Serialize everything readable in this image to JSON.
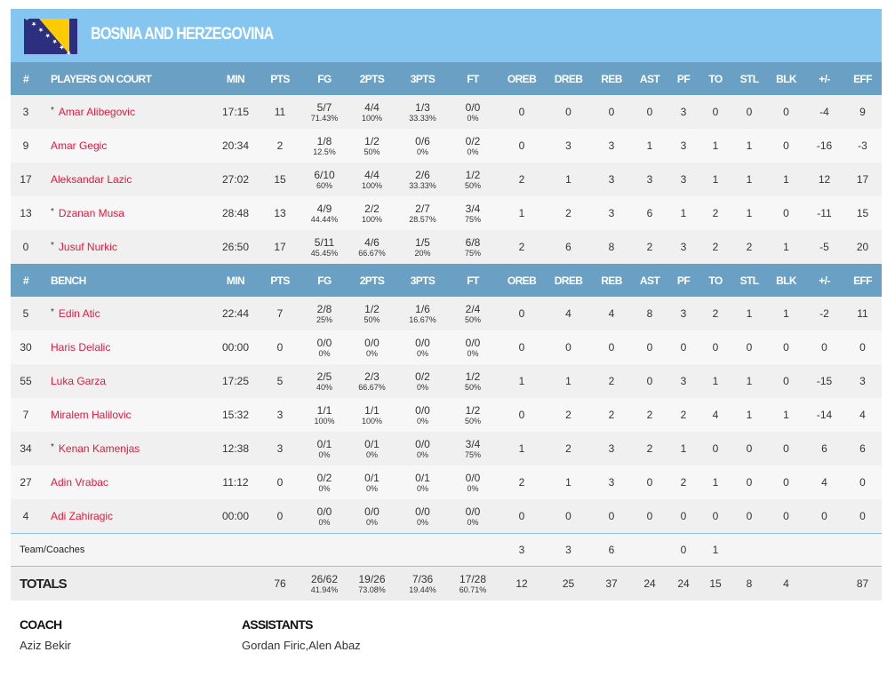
{
  "team": {
    "name": "BOSNIA AND HERZEGOVINA",
    "flag_colors": {
      "blue": "#2b2f7e",
      "yellow": "#fecb00"
    }
  },
  "columns": [
    "MIN",
    "PTS",
    "FG",
    "2PTS",
    "3PTS",
    "FT",
    "OREB",
    "DREB",
    "REB",
    "AST",
    "PF",
    "TO",
    "STL",
    "BLK",
    "+/-",
    "EFF"
  ],
  "hash_label": "#",
  "on_court_label": "PLAYERS ON COURT",
  "bench_label": "BENCH",
  "on_court": [
    {
      "no": "3",
      "starter": true,
      "name": "Amar Alibegovic",
      "min": "17:15",
      "pts": "11",
      "fg": [
        "5/7",
        "71.43%"
      ],
      "p2": [
        "4/4",
        "100%"
      ],
      "p3": [
        "1/3",
        "33.33%"
      ],
      "ft": [
        "0/0",
        "0%"
      ],
      "rest": [
        "0",
        "0",
        "0",
        "0",
        "3",
        "0",
        "0",
        "0",
        "-4",
        "9"
      ]
    },
    {
      "no": "9",
      "starter": false,
      "name": "Amar Gegic",
      "min": "20:34",
      "pts": "2",
      "fg": [
        "1/8",
        "12.5%"
      ],
      "p2": [
        "1/2",
        "50%"
      ],
      "p3": [
        "0/6",
        "0%"
      ],
      "ft": [
        "0/2",
        "0%"
      ],
      "rest": [
        "0",
        "3",
        "3",
        "1",
        "3",
        "1",
        "1",
        "0",
        "-16",
        "-3"
      ]
    },
    {
      "no": "17",
      "starter": false,
      "name": "Aleksandar Lazic",
      "min": "27:02",
      "pts": "15",
      "fg": [
        "6/10",
        "60%"
      ],
      "p2": [
        "4/4",
        "100%"
      ],
      "p3": [
        "2/6",
        "33.33%"
      ],
      "ft": [
        "1/2",
        "50%"
      ],
      "rest": [
        "2",
        "1",
        "3",
        "3",
        "3",
        "1",
        "1",
        "1",
        "12",
        "17"
      ]
    },
    {
      "no": "13",
      "starter": true,
      "name": "Dzanan Musa",
      "min": "28:48",
      "pts": "13",
      "fg": [
        "4/9",
        "44.44%"
      ],
      "p2": [
        "2/2",
        "100%"
      ],
      "p3": [
        "2/7",
        "28.57%"
      ],
      "ft": [
        "3/4",
        "75%"
      ],
      "rest": [
        "1",
        "2",
        "3",
        "6",
        "1",
        "2",
        "1",
        "0",
        "-11",
        "15"
      ]
    },
    {
      "no": "0",
      "starter": true,
      "name": "Jusuf Nurkic",
      "min": "26:50",
      "pts": "17",
      "fg": [
        "5/11",
        "45.45%"
      ],
      "p2": [
        "4/6",
        "66.67%"
      ],
      "p3": [
        "1/5",
        "20%"
      ],
      "ft": [
        "6/8",
        "75%"
      ],
      "rest": [
        "2",
        "6",
        "8",
        "2",
        "3",
        "2",
        "2",
        "1",
        "-5",
        "20"
      ]
    }
  ],
  "bench": [
    {
      "no": "5",
      "starter": true,
      "name": "Edin Atic",
      "min": "22:44",
      "pts": "7",
      "fg": [
        "2/8",
        "25%"
      ],
      "p2": [
        "1/2",
        "50%"
      ],
      "p3": [
        "1/6",
        "16.67%"
      ],
      "ft": [
        "2/4",
        "50%"
      ],
      "rest": [
        "0",
        "4",
        "4",
        "8",
        "3",
        "2",
        "1",
        "1",
        "-2",
        "11"
      ]
    },
    {
      "no": "30",
      "starter": false,
      "name": "Haris Delalic",
      "min": "00:00",
      "pts": "0",
      "fg": [
        "0/0",
        "0%"
      ],
      "p2": [
        "0/0",
        "0%"
      ],
      "p3": [
        "0/0",
        "0%"
      ],
      "ft": [
        "0/0",
        "0%"
      ],
      "rest": [
        "0",
        "0",
        "0",
        "0",
        "0",
        "0",
        "0",
        "0",
        "0",
        "0"
      ]
    },
    {
      "no": "55",
      "starter": false,
      "name": "Luka Garza",
      "min": "17:25",
      "pts": "5",
      "fg": [
        "2/5",
        "40%"
      ],
      "p2": [
        "2/3",
        "66.67%"
      ],
      "p3": [
        "0/2",
        "0%"
      ],
      "ft": [
        "1/2",
        "50%"
      ],
      "rest": [
        "1",
        "1",
        "2",
        "0",
        "3",
        "1",
        "1",
        "0",
        "-15",
        "3"
      ]
    },
    {
      "no": "7",
      "starter": false,
      "name": "Miralem Halilovic",
      "min": "15:32",
      "pts": "3",
      "fg": [
        "1/1",
        "100%"
      ],
      "p2": [
        "1/1",
        "100%"
      ],
      "p3": [
        "0/0",
        "0%"
      ],
      "ft": [
        "1/2",
        "50%"
      ],
      "rest": [
        "0",
        "2",
        "2",
        "2",
        "2",
        "4",
        "1",
        "1",
        "-14",
        "4"
      ]
    },
    {
      "no": "34",
      "starter": true,
      "name": "Kenan Kamenjas",
      "min": "12:38",
      "pts": "3",
      "fg": [
        "0/1",
        "0%"
      ],
      "p2": [
        "0/1",
        "0%"
      ],
      "p3": [
        "0/0",
        "0%"
      ],
      "ft": [
        "3/4",
        "75%"
      ],
      "rest": [
        "1",
        "2",
        "3",
        "2",
        "1",
        "0",
        "0",
        "0",
        "6",
        "6"
      ]
    },
    {
      "no": "27",
      "starter": false,
      "name": "Adin Vrabac",
      "min": "11:12",
      "pts": "0",
      "fg": [
        "0/2",
        "0%"
      ],
      "p2": [
        "0/1",
        "0%"
      ],
      "p3": [
        "0/1",
        "0%"
      ],
      "ft": [
        "0/0",
        "0%"
      ],
      "rest": [
        "2",
        "1",
        "3",
        "0",
        "2",
        "1",
        "0",
        "0",
        "4",
        "0"
      ]
    },
    {
      "no": "4",
      "starter": false,
      "name": "Adi Zahiragic",
      "min": "00:00",
      "pts": "0",
      "fg": [
        "0/0",
        "0%"
      ],
      "p2": [
        "0/0",
        "0%"
      ],
      "p3": [
        "0/0",
        "0%"
      ],
      "ft": [
        "0/0",
        "0%"
      ],
      "rest": [
        "0",
        "0",
        "0",
        "0",
        "0",
        "0",
        "0",
        "0",
        "0",
        "0"
      ]
    }
  ],
  "team_row": {
    "label": "Team/Coaches",
    "cells": [
      "",
      "",
      "",
      "",
      "",
      "",
      "3",
      "3",
      "6",
      "",
      "0",
      "1",
      "",
      "",
      "",
      ""
    ]
  },
  "totals": {
    "label": "TOTALS",
    "pts": "76",
    "fg": [
      "26/62",
      "41.94%"
    ],
    "p2": [
      "19/26",
      "73.08%"
    ],
    "p3": [
      "7/36",
      "19.44%"
    ],
    "ft": [
      "17/28",
      "60.71%"
    ],
    "rest": [
      "12",
      "25",
      "37",
      "24",
      "24",
      "15",
      "8",
      "4",
      "",
      "87"
    ]
  },
  "staff": {
    "coach_label": "COACH",
    "coach": "Aziz Bekir",
    "assistants_label": "ASSISTANTS",
    "assistants": "Gordan Firic,Alen Abaz"
  },
  "colors": {
    "banner": "#85c6f0",
    "header": "#6aa0c4",
    "player_name": "#e8173c"
  }
}
